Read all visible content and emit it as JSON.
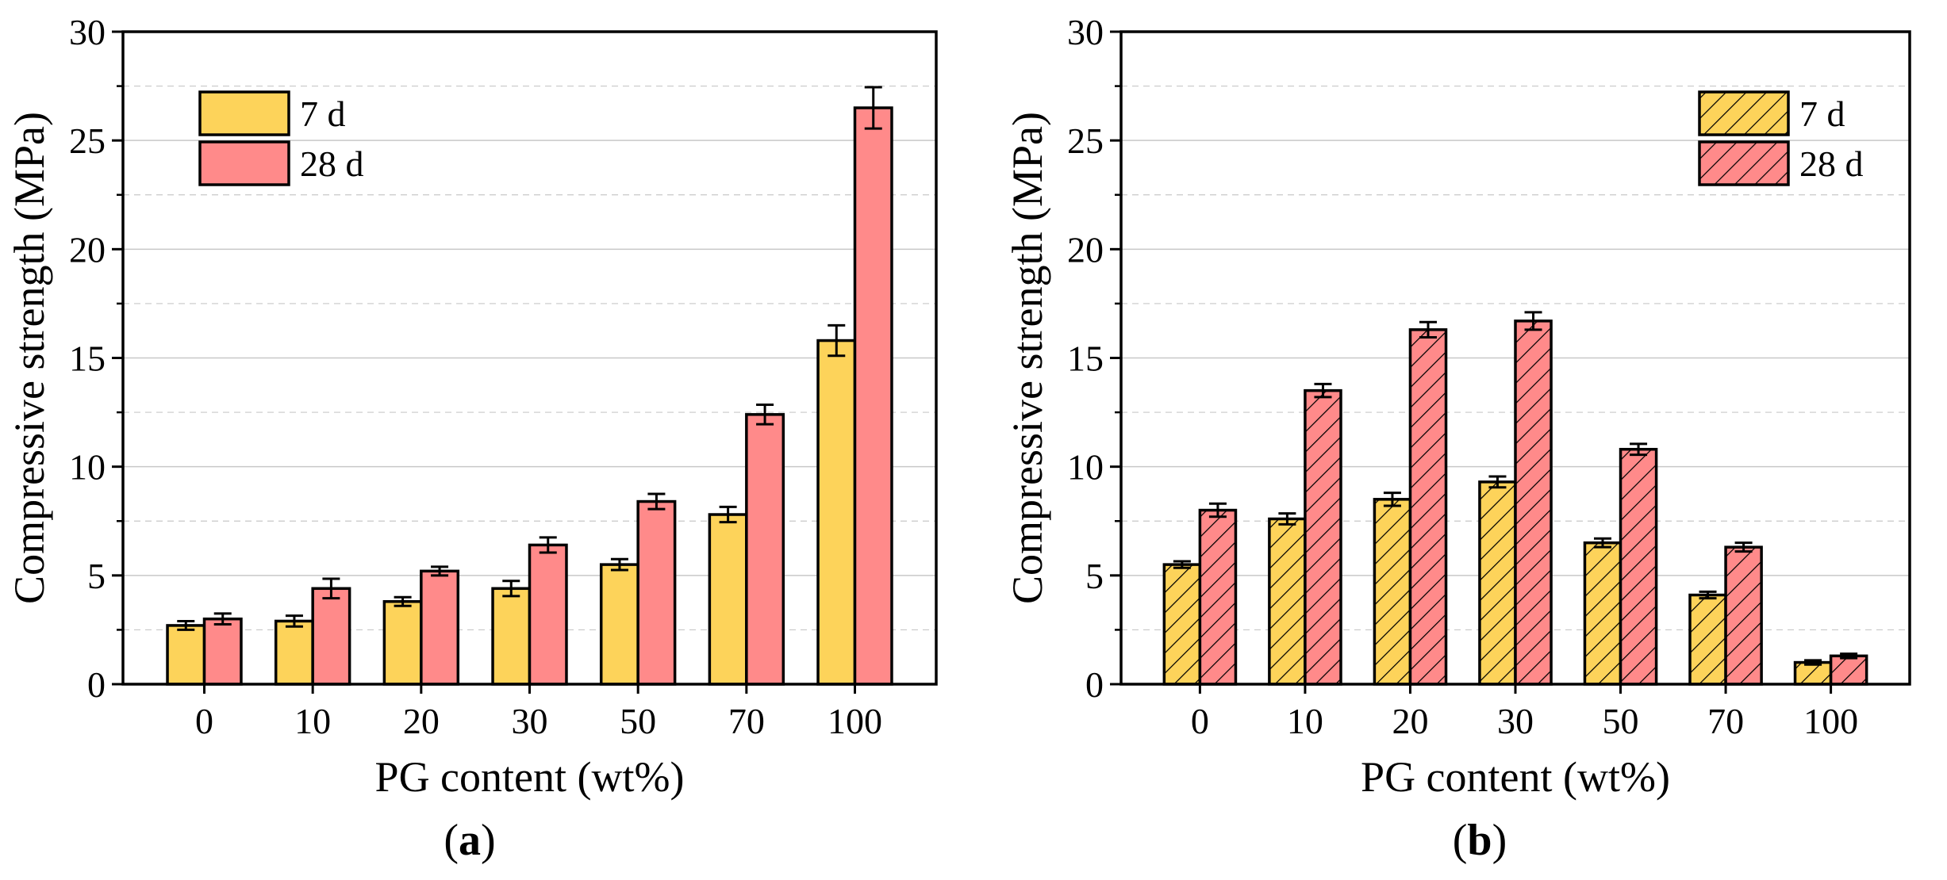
{
  "colors": {
    "series_7d": "#FDD35A",
    "series_28d": "#FF8A8A",
    "grid": "#c8c8c8",
    "axis": "#000000"
  },
  "chart_data": [
    {
      "id": "a",
      "type": "bar",
      "panel_label": "a",
      "xlabel": "PG content (wt%)",
      "ylabel": "Compressive strength (MPa)",
      "ylim": [
        0,
        30
      ],
      "yticks": [
        0,
        5,
        10,
        15,
        20,
        25,
        30
      ],
      "grid": true,
      "hatched": false,
      "legend_position": "top-left",
      "categories": [
        "0",
        "10",
        "20",
        "30",
        "50",
        "70",
        "100"
      ],
      "series": [
        {
          "name": "7 d",
          "values": [
            2.7,
            2.9,
            3.8,
            4.4,
            5.5,
            7.8,
            15.8
          ],
          "errors": [
            0.2,
            0.25,
            0.2,
            0.35,
            0.25,
            0.35,
            0.7
          ]
        },
        {
          "name": "28 d",
          "values": [
            3.0,
            4.4,
            5.2,
            6.4,
            8.4,
            12.4,
            26.5
          ],
          "errors": [
            0.25,
            0.45,
            0.2,
            0.35,
            0.35,
            0.45,
            0.95
          ]
        }
      ]
    },
    {
      "id": "b",
      "type": "bar",
      "panel_label": "b",
      "xlabel": "PG content (wt%)",
      "ylabel": "Compressive strength (MPa)",
      "ylim": [
        0,
        30
      ],
      "yticks": [
        0,
        5,
        10,
        15,
        20,
        25,
        30
      ],
      "grid": true,
      "hatched": true,
      "legend_position": "top-right",
      "categories": [
        "0",
        "10",
        "20",
        "30",
        "50",
        "70",
        "100"
      ],
      "series": [
        {
          "name": "7 d",
          "values": [
            5.5,
            7.6,
            8.5,
            9.3,
            6.5,
            4.1,
            1.0
          ],
          "errors": [
            0.15,
            0.25,
            0.3,
            0.25,
            0.2,
            0.15,
            0.1
          ]
        },
        {
          "name": "28 d",
          "values": [
            8.0,
            13.5,
            16.3,
            16.7,
            10.8,
            6.3,
            1.3
          ],
          "errors": [
            0.3,
            0.3,
            0.35,
            0.4,
            0.25,
            0.2,
            0.1
          ]
        }
      ]
    }
  ]
}
